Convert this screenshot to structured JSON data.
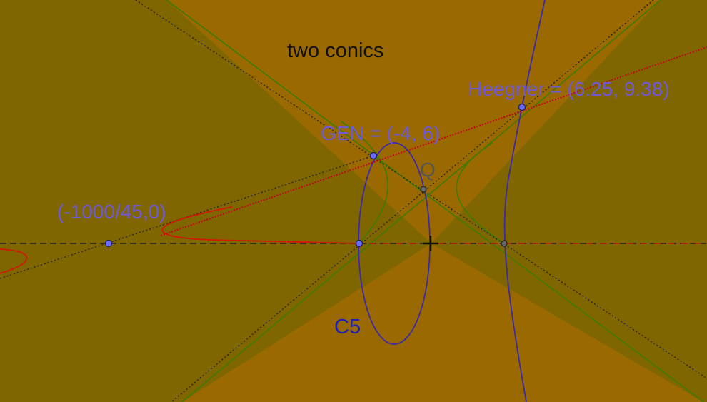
{
  "title": "two conics",
  "labels": {
    "heegner": "Heegner = (6.25, 9.38)",
    "gen": "GEN = (-4, 6)",
    "q": "Q",
    "point_neg1000": "(-1000/45,0)",
    "c5": "C5"
  },
  "colors": {
    "background": "#9a6a00",
    "region_dark": "#806600",
    "point_label": "#6e5ad6",
    "point_fill": "#6a6aff",
    "conic_blue": "#3b2aa8",
    "hyperbola_green": "#3d7a00",
    "cubic_red": "#d01800",
    "dotted_line": "#222222",
    "secant_red": "#c8001e",
    "q_label": "#555555",
    "title_text": "#111111"
  }
}
